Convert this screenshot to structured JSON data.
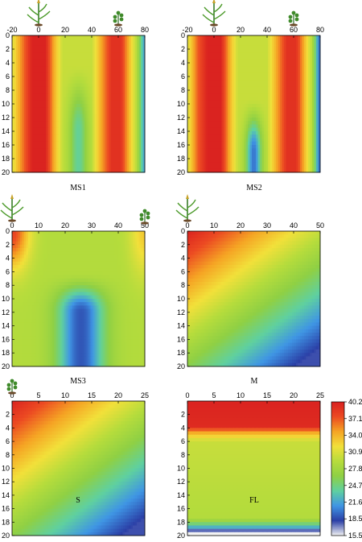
{
  "chart_data": [
    {
      "type": "heatmap",
      "title": "MS1",
      "x_ticks": [
        "-20",
        "0",
        "20",
        "40",
        "60",
        "80"
      ],
      "xlim": [
        -20,
        80
      ],
      "y_ticks": [
        "0",
        "2",
        "4",
        "6",
        "8",
        "10",
        "12",
        "14",
        "16",
        "18",
        "20"
      ],
      "ylim": [
        0,
        20
      ],
      "icons": [
        {
          "name": "maize-plant-icon",
          "x": 0
        },
        {
          "name": "soybean-plant-icon",
          "x": 60
        }
      ],
      "x_profile": [
        [
          -20,
          31
        ],
        [
          -12,
          36
        ],
        [
          -5,
          40
        ],
        [
          5,
          40
        ],
        [
          12,
          34
        ],
        [
          18,
          30
        ],
        [
          40,
          30
        ],
        [
          48,
          35
        ],
        [
          55,
          39
        ],
        [
          62,
          39
        ],
        [
          68,
          34
        ],
        [
          74,
          29
        ],
        [
          79,
          22
        ],
        [
          80,
          22
        ]
      ],
      "dip_center": 30,
      "dip_width": 7,
      "dip_depth": 6,
      "dip_start_depth": 8
    },
    {
      "type": "heatmap",
      "title": "MS2",
      "x_ticks": [
        "-20",
        "0",
        "20",
        "40",
        "60",
        "80"
      ],
      "xlim": [
        -20,
        80
      ],
      "y_ticks": [
        "0",
        "2",
        "4",
        "6",
        "8",
        "10",
        "12",
        "14",
        "16",
        "18",
        "20"
      ],
      "ylim": [
        0,
        20
      ],
      "icons": [
        {
          "name": "maize-plant-icon",
          "x": 0
        },
        {
          "name": "soybean-plant-icon",
          "x": 60
        }
      ],
      "x_profile": [
        [
          -20,
          31
        ],
        [
          -12,
          37
        ],
        [
          -5,
          40
        ],
        [
          5,
          40
        ],
        [
          12,
          34
        ],
        [
          18,
          30
        ],
        [
          40,
          30
        ],
        [
          48,
          35
        ],
        [
          55,
          39
        ],
        [
          62,
          39
        ],
        [
          68,
          34
        ],
        [
          74,
          29
        ],
        [
          79,
          20
        ],
        [
          80,
          20
        ]
      ],
      "dip_center": 30,
      "dip_width": 6,
      "dip_depth": 10,
      "dip_start_depth": 12
    },
    {
      "type": "heatmap",
      "title": "MS3",
      "x_ticks": [
        "0",
        "10",
        "20",
        "30",
        "40",
        "50"
      ],
      "xlim": [
        0,
        50
      ],
      "y_ticks": [
        "0",
        "2",
        "4",
        "6",
        "8",
        "10",
        "12",
        "14",
        "16",
        "18",
        "20"
      ],
      "ylim": [
        0,
        20
      ],
      "icons": [
        {
          "name": "maize-plant-icon",
          "x": 0
        },
        {
          "name": "soybean-plant-icon",
          "x": 50
        }
      ],
      "corner_tl": 38,
      "corner_tr": 33,
      "base": 29,
      "blob_center": 26,
      "blob_top_depth": 9,
      "blob_value": 19
    },
    {
      "type": "heatmap",
      "title": "M",
      "x_ticks": [
        "0",
        "10",
        "20",
        "30",
        "40",
        "50"
      ],
      "xlim": [
        0,
        50
      ],
      "y_ticks": [
        "0",
        "2",
        "4",
        "6",
        "8",
        "10",
        "12",
        "14",
        "16",
        "18",
        "20"
      ],
      "ylim": [
        0,
        20
      ],
      "icons": [
        {
          "name": "maize-plant-icon",
          "x": 0
        }
      ],
      "diagonal_gradient": {
        "top_left": 40,
        "bottom_right": 18
      }
    },
    {
      "type": "heatmap",
      "title": "S",
      "x_ticks": [
        "0",
        "5",
        "10",
        "15",
        "20",
        "25"
      ],
      "xlim": [
        0,
        25
      ],
      "y_ticks": [
        "2",
        "4",
        "6",
        "8",
        "10",
        "12",
        "14",
        "16",
        "18",
        "20"
      ],
      "ylim": [
        0,
        20
      ],
      "icons": [
        {
          "name": "soybean-plant-icon",
          "x": 0
        }
      ],
      "diagonal_gradient": {
        "top_left": 40,
        "bottom_right": 18
      }
    },
    {
      "type": "heatmap",
      "title": "FL",
      "x_ticks": [
        "0",
        "5",
        "10",
        "15",
        "20",
        "25"
      ],
      "xlim": [
        0,
        25
      ],
      "y_ticks": [
        "2",
        "4",
        "6",
        "8",
        "10",
        "12",
        "14",
        "16",
        "18",
        "20"
      ],
      "ylim": [
        0,
        20
      ],
      "icons": [],
      "depth_profile": [
        [
          0,
          40
        ],
        [
          3.8,
          39.5
        ],
        [
          4.8,
          34
        ],
        [
          6,
          30
        ],
        [
          17.5,
          29
        ],
        [
          19,
          21
        ],
        [
          19.4,
          15.5
        ],
        [
          20,
          15.5
        ]
      ]
    }
  ],
  "colorbar": {
    "ticks": [
      "40.20",
      "37.11",
      "34.03",
      "30.94",
      "27.85",
      "24.76",
      "21.68",
      "18.59",
      "15.50"
    ],
    "min": 15.5,
    "max": 40.2,
    "colors": [
      "#f3f3f3",
      "#2b3fa6",
      "#3f95e4",
      "#5fd0a0",
      "#8fd044",
      "#b6dc3c",
      "#f2e03a",
      "#f5a424",
      "#ec4a22",
      "#d92020"
    ]
  }
}
